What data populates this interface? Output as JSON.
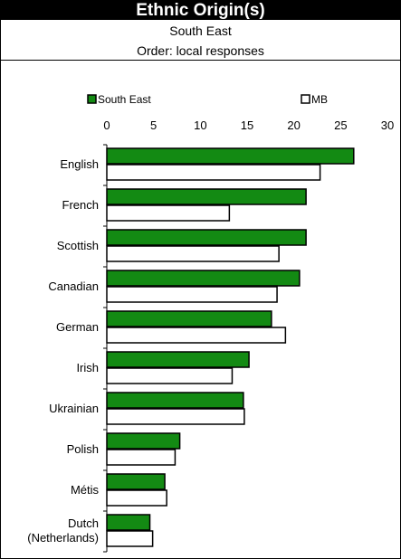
{
  "chart_data": {
    "type": "bar",
    "orientation": "horizontal",
    "title": "Ethnic Origin(s)",
    "subtitle": "South East",
    "order_note": "Order: local responses",
    "categories": [
      "English",
      "French",
      "Scottish",
      "Canadian",
      "German",
      "Irish",
      "Ukrainian",
      "Polish",
      "Métis",
      "Dutch (Netherlands)"
    ],
    "category_lines": [
      [
        "English"
      ],
      [
        "French"
      ],
      [
        "Scottish"
      ],
      [
        "Canadian"
      ],
      [
        "German"
      ],
      [
        "Irish"
      ],
      [
        "Ukrainian"
      ],
      [
        "Polish"
      ],
      [
        "Métis"
      ],
      [
        "Dutch",
        "(Netherlands)"
      ]
    ],
    "series": [
      {
        "name": "South East",
        "color": "#138a13",
        "values": [
          26.4,
          21.3,
          21.3,
          20.6,
          17.6,
          15.2,
          14.6,
          7.8,
          6.2,
          4.6
        ]
      },
      {
        "name": "MB",
        "color": "#ffffff",
        "values": [
          22.8,
          13.1,
          18.4,
          18.2,
          19.1,
          13.4,
          14.7,
          7.3,
          6.4,
          4.9
        ]
      }
    ],
    "xlim": [
      0,
      30
    ],
    "xticks": [
      0,
      5,
      10,
      15,
      20,
      25,
      30
    ],
    "legend_position": "top",
    "grid": false
  }
}
